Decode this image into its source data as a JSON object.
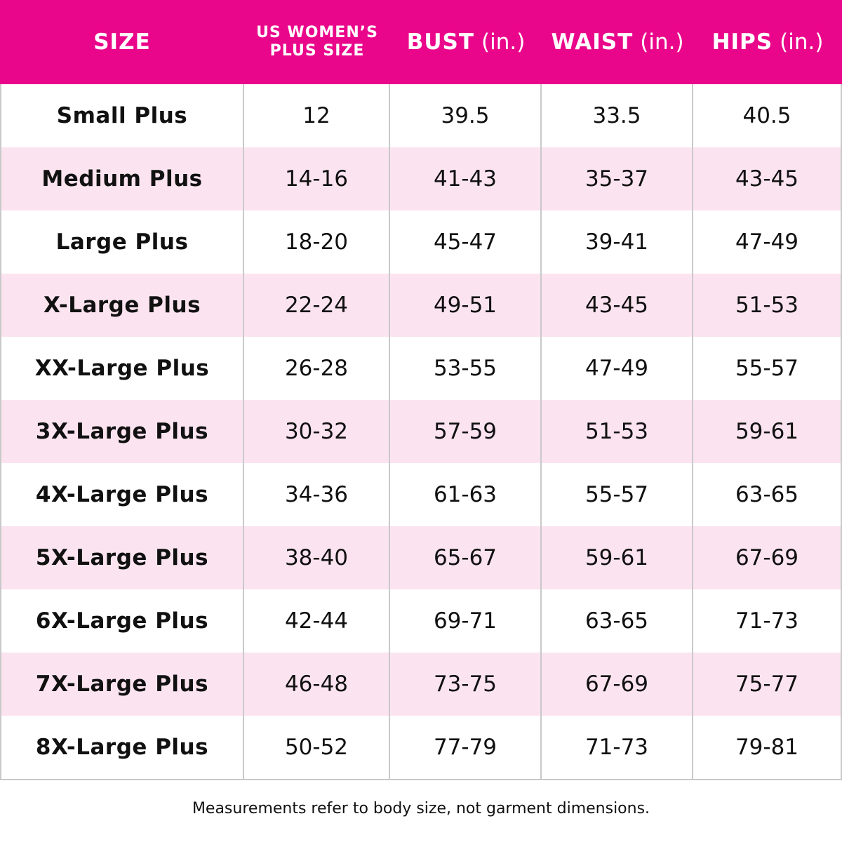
{
  "table": {
    "columns": [
      {
        "name": "SIZE"
      },
      {
        "lines": [
          "US WOMEN’S",
          "PLUS SIZE"
        ]
      },
      {
        "name": "BUST",
        "unit": "(in.)"
      },
      {
        "name": "WAIST",
        "unit": "(in.)"
      },
      {
        "name": "HIPS",
        "unit": "(in.)"
      }
    ],
    "rows": [
      [
        "Small Plus",
        "12",
        "39.5",
        "33.5",
        "40.5"
      ],
      [
        "Medium Plus",
        "14-16",
        "41-43",
        "35-37",
        "43-45"
      ],
      [
        "Large Plus",
        "18-20",
        "45-47",
        "39-41",
        "47-49"
      ],
      [
        "X-Large Plus",
        "22-24",
        "49-51",
        "43-45",
        "51-53"
      ],
      [
        "XX-Large Plus",
        "26-28",
        "53-55",
        "47-49",
        "55-57"
      ],
      [
        "3X-Large Plus",
        "30-32",
        "57-59",
        "51-53",
        "59-61"
      ],
      [
        "4X-Large Plus",
        "34-36",
        "61-63",
        "55-57",
        "63-65"
      ],
      [
        "5X-Large Plus",
        "38-40",
        "65-67",
        "59-61",
        "67-69"
      ],
      [
        "6X-Large Plus",
        "42-44",
        "69-71",
        "63-65",
        "71-73"
      ],
      [
        "7X-Large Plus",
        "46-48",
        "73-75",
        "67-69",
        "75-77"
      ],
      [
        "8X-Large Plus",
        "50-52",
        "77-79",
        "71-73",
        "79-81"
      ]
    ]
  },
  "footer": {
    "note": "Measurements refer to body size, not garment dimensions."
  }
}
